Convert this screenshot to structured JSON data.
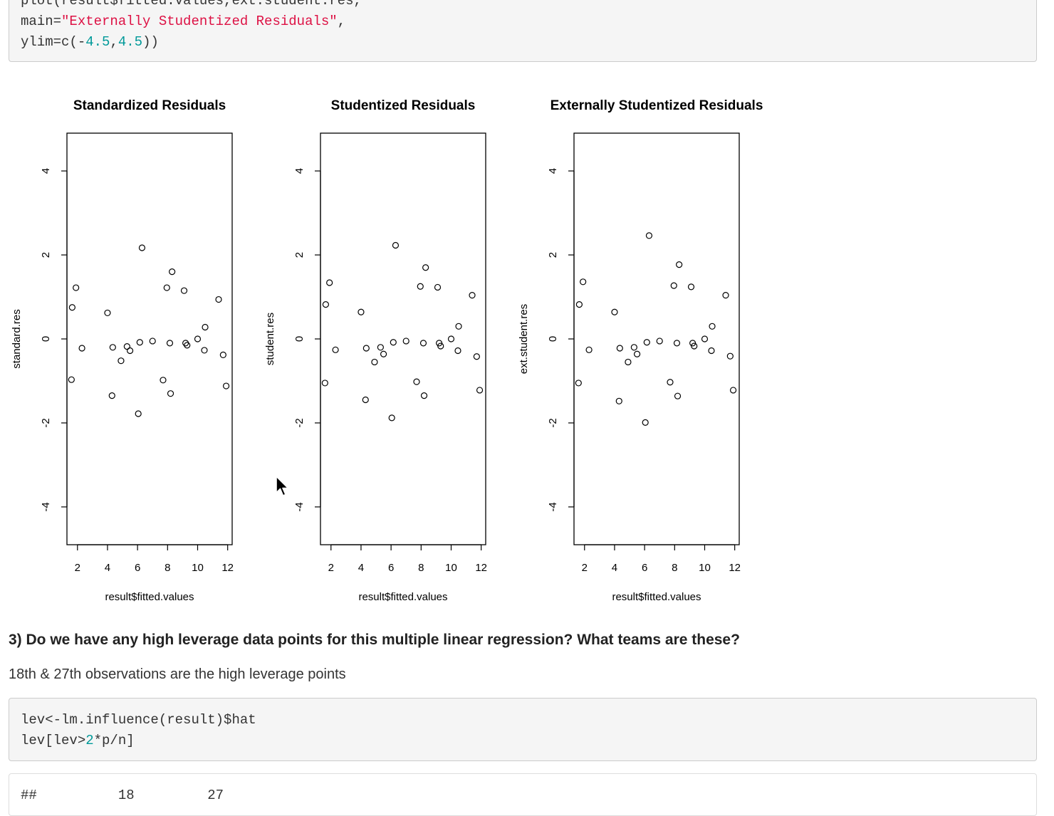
{
  "code_top": {
    "lines": [
      [
        {
          "t": "plot(result$fitted.values,ext.student.res,",
          "c": ""
        }
      ],
      [
        {
          "t": "main=",
          "c": ""
        },
        {
          "t": "\"Externally Studentized Residuals\"",
          "c": "str"
        },
        {
          "t": ",",
          "c": ""
        }
      ],
      [
        {
          "t": "ylim=c(-",
          "c": ""
        },
        {
          "t": "4.5",
          "c": "num"
        },
        {
          "t": ",",
          "c": ""
        },
        {
          "t": "4.5",
          "c": "num"
        },
        {
          "t": "))",
          "c": ""
        }
      ]
    ]
  },
  "chart_data": [
    {
      "type": "scatter",
      "title": "Standardized Residuals",
      "xlabel": "result$fitted.values",
      "ylabel": "standard.res",
      "xlim": [
        1.3,
        12.3
      ],
      "ylim": [
        -4.9,
        4.9
      ],
      "xticks": [
        2,
        4,
        6,
        8,
        10,
        12
      ],
      "yticks": [
        -4,
        -2,
        0,
        2,
        4
      ],
      "points": [
        {
          "x": 1.6,
          "y": -0.97
        },
        {
          "x": 1.65,
          "y": 0.75
        },
        {
          "x": 1.9,
          "y": 1.22
        },
        {
          "x": 2.3,
          "y": -0.22
        },
        {
          "x": 4.0,
          "y": 0.62
        },
        {
          "x": 4.3,
          "y": -1.35
        },
        {
          "x": 4.35,
          "y": -0.2
        },
        {
          "x": 4.9,
          "y": -0.52
        },
        {
          "x": 5.3,
          "y": -0.18
        },
        {
          "x": 5.5,
          "y": -0.28
        },
        {
          "x": 6.05,
          "y": -1.78
        },
        {
          "x": 6.15,
          "y": -0.08
        },
        {
          "x": 6.3,
          "y": 2.17
        },
        {
          "x": 7.0,
          "y": -0.05
        },
        {
          "x": 7.7,
          "y": -0.98
        },
        {
          "x": 7.95,
          "y": 1.22
        },
        {
          "x": 8.15,
          "y": -0.1
        },
        {
          "x": 8.2,
          "y": -1.3
        },
        {
          "x": 8.3,
          "y": 1.6
        },
        {
          "x": 9.1,
          "y": 1.15
        },
        {
          "x": 9.2,
          "y": -0.1
        },
        {
          "x": 9.3,
          "y": -0.15
        },
        {
          "x": 10.0,
          "y": 0.0
        },
        {
          "x": 10.45,
          "y": -0.27
        },
        {
          "x": 10.5,
          "y": 0.28
        },
        {
          "x": 11.4,
          "y": 0.94
        },
        {
          "x": 11.7,
          "y": -0.38
        },
        {
          "x": 11.9,
          "y": -1.12
        }
      ]
    },
    {
      "type": "scatter",
      "title": "Studentized Residuals",
      "xlabel": "result$fitted.values",
      "ylabel": "student.res",
      "xlim": [
        1.3,
        12.3
      ],
      "ylim": [
        -4.9,
        4.9
      ],
      "xticks": [
        2,
        4,
        6,
        8,
        10,
        12
      ],
      "yticks": [
        -4,
        -2,
        0,
        2,
        4
      ],
      "points": [
        {
          "x": 1.6,
          "y": -1.05
        },
        {
          "x": 1.65,
          "y": 0.82
        },
        {
          "x": 1.9,
          "y": 1.34
        },
        {
          "x": 2.3,
          "y": -0.26
        },
        {
          "x": 4.0,
          "y": 0.64
        },
        {
          "x": 4.3,
          "y": -1.45
        },
        {
          "x": 4.35,
          "y": -0.22
        },
        {
          "x": 4.9,
          "y": -0.55
        },
        {
          "x": 5.3,
          "y": -0.2
        },
        {
          "x": 5.5,
          "y": -0.36
        },
        {
          "x": 6.05,
          "y": -1.88
        },
        {
          "x": 6.15,
          "y": -0.08
        },
        {
          "x": 6.3,
          "y": 2.23
        },
        {
          "x": 7.0,
          "y": -0.05
        },
        {
          "x": 7.7,
          "y": -1.02
        },
        {
          "x": 7.95,
          "y": 1.25
        },
        {
          "x": 8.15,
          "y": -0.1
        },
        {
          "x": 8.2,
          "y": -1.35
        },
        {
          "x": 8.3,
          "y": 1.7
        },
        {
          "x": 9.1,
          "y": 1.23
        },
        {
          "x": 9.2,
          "y": -0.1
        },
        {
          "x": 9.3,
          "y": -0.17
        },
        {
          "x": 10.0,
          "y": 0.0
        },
        {
          "x": 10.45,
          "y": -0.28
        },
        {
          "x": 10.5,
          "y": 0.3
        },
        {
          "x": 11.4,
          "y": 1.04
        },
        {
          "x": 11.7,
          "y": -0.42
        },
        {
          "x": 11.9,
          "y": -1.22
        }
      ]
    },
    {
      "type": "scatter",
      "title": "Externally Studentized Residuals",
      "xlabel": "result$fitted.values",
      "ylabel": "ext.student.res",
      "xlim": [
        1.3,
        12.3
      ],
      "ylim": [
        -4.9,
        4.9
      ],
      "xticks": [
        2,
        4,
        6,
        8,
        10,
        12
      ],
      "yticks": [
        -4,
        -2,
        0,
        2,
        4
      ],
      "points": [
        {
          "x": 1.6,
          "y": -1.05
        },
        {
          "x": 1.65,
          "y": 0.82
        },
        {
          "x": 1.9,
          "y": 1.36
        },
        {
          "x": 2.3,
          "y": -0.26
        },
        {
          "x": 4.0,
          "y": 0.64
        },
        {
          "x": 4.3,
          "y": -1.48
        },
        {
          "x": 4.35,
          "y": -0.22
        },
        {
          "x": 4.9,
          "y": -0.55
        },
        {
          "x": 5.3,
          "y": -0.2
        },
        {
          "x": 5.5,
          "y": -0.36
        },
        {
          "x": 6.05,
          "y": -1.99
        },
        {
          "x": 6.15,
          "y": -0.08
        },
        {
          "x": 6.3,
          "y": 2.46
        },
        {
          "x": 7.0,
          "y": -0.05
        },
        {
          "x": 7.7,
          "y": -1.03
        },
        {
          "x": 7.95,
          "y": 1.27
        },
        {
          "x": 8.15,
          "y": -0.1
        },
        {
          "x": 8.2,
          "y": -1.36
        },
        {
          "x": 8.3,
          "y": 1.77
        },
        {
          "x": 9.1,
          "y": 1.24
        },
        {
          "x": 9.2,
          "y": -0.1
        },
        {
          "x": 9.3,
          "y": -0.17
        },
        {
          "x": 10.0,
          "y": 0.0
        },
        {
          "x": 10.45,
          "y": -0.28
        },
        {
          "x": 10.5,
          "y": 0.3
        },
        {
          "x": 11.4,
          "y": 1.04
        },
        {
          "x": 11.7,
          "y": -0.41
        },
        {
          "x": 11.9,
          "y": -1.22
        }
      ]
    }
  ],
  "question": "3) Do we have any high leverage data points for this multiple linear regression? What teams are these?",
  "answer": "18th & 27th observations are the high leverage points",
  "code_lev": {
    "lines": [
      [
        {
          "t": "lev<-lm.influence(result)$hat",
          "c": ""
        }
      ],
      [
        {
          "t": "lev[lev>",
          "c": ""
        },
        {
          "t": "2",
          "c": "num"
        },
        {
          "t": "*p/n]",
          "c": ""
        }
      ]
    ]
  },
  "output": {
    "line": "##          18         27"
  }
}
